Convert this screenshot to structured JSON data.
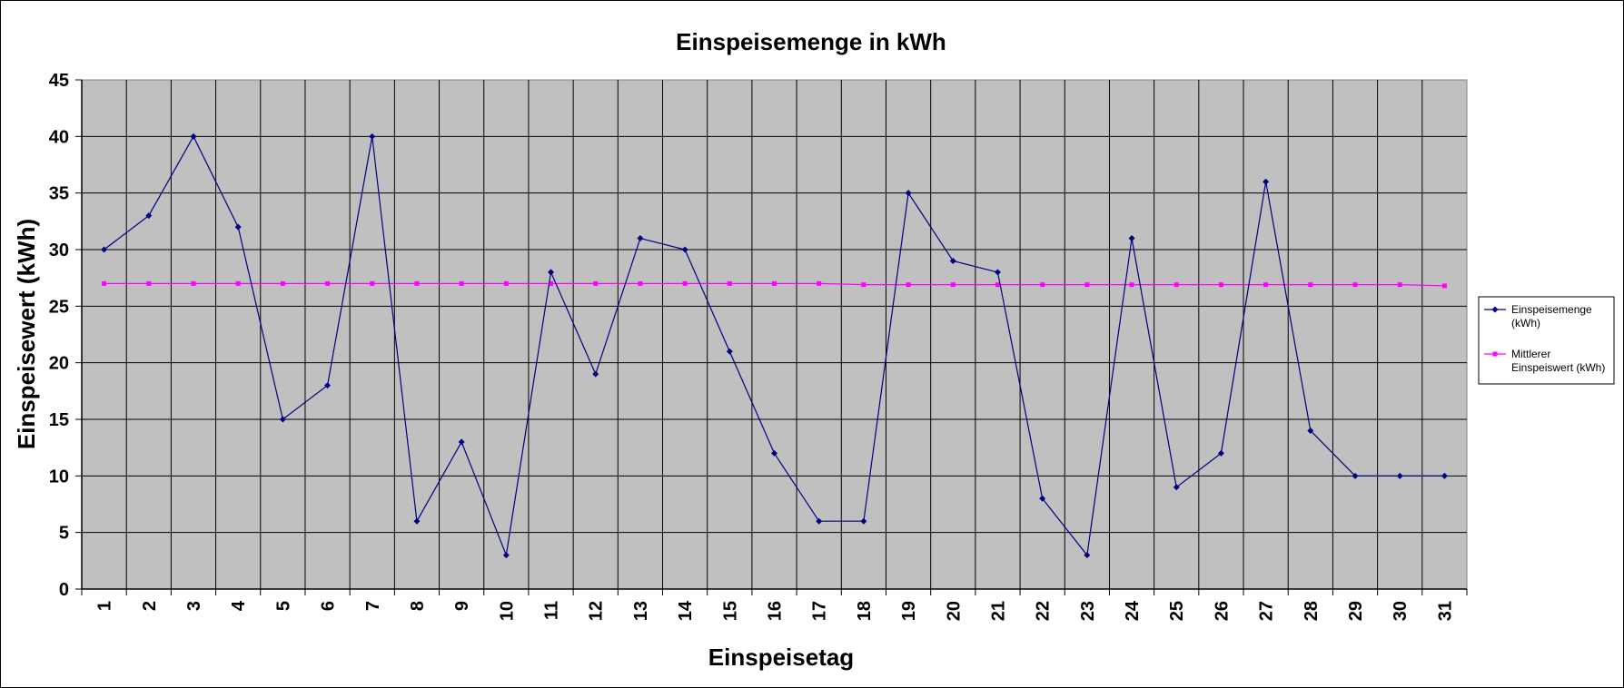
{
  "chart_data": {
    "type": "line",
    "title": "Einspeisemenge in kWh",
    "xlabel": "Einspeisetag",
    "ylabel": "Einspeisewert  (kWh)",
    "ylim": [
      0,
      45
    ],
    "ytick_step": 5,
    "grid": true,
    "legend_position": "right",
    "plot_background": "#c0c0c0",
    "x": [
      1,
      2,
      3,
      4,
      5,
      6,
      7,
      8,
      9,
      10,
      11,
      12,
      13,
      14,
      15,
      16,
      17,
      18,
      19,
      20,
      21,
      22,
      23,
      24,
      25,
      26,
      27,
      28,
      29,
      30,
      31
    ],
    "series": [
      {
        "name": "Einspeisemenge (kWh)",
        "legend_lines": [
          "Einspeisemenge",
          "(kWh)"
        ],
        "color": "#000080",
        "marker": "diamond",
        "values": [
          30,
          33,
          40,
          32,
          15,
          18,
          40,
          6,
          13,
          3,
          28,
          19,
          31,
          30,
          21,
          12,
          6,
          6,
          35,
          29,
          28,
          8,
          3,
          31,
          9,
          12,
          36,
          14,
          10,
          10,
          10
        ]
      },
      {
        "name": "Mittlerer Einspeiswert (kWh)",
        "legend_lines": [
          "Mittlerer",
          "Einspeiswert (kWh)"
        ],
        "color": "#ff00ff",
        "marker": "square",
        "values": [
          27,
          27,
          27,
          27,
          27,
          27,
          27,
          27,
          27,
          27,
          27,
          27,
          27,
          27,
          27,
          27,
          27,
          26.9,
          26.9,
          26.9,
          26.9,
          26.9,
          26.9,
          26.9,
          26.9,
          26.9,
          26.9,
          26.9,
          26.9,
          26.9,
          26.8
        ]
      }
    ]
  }
}
